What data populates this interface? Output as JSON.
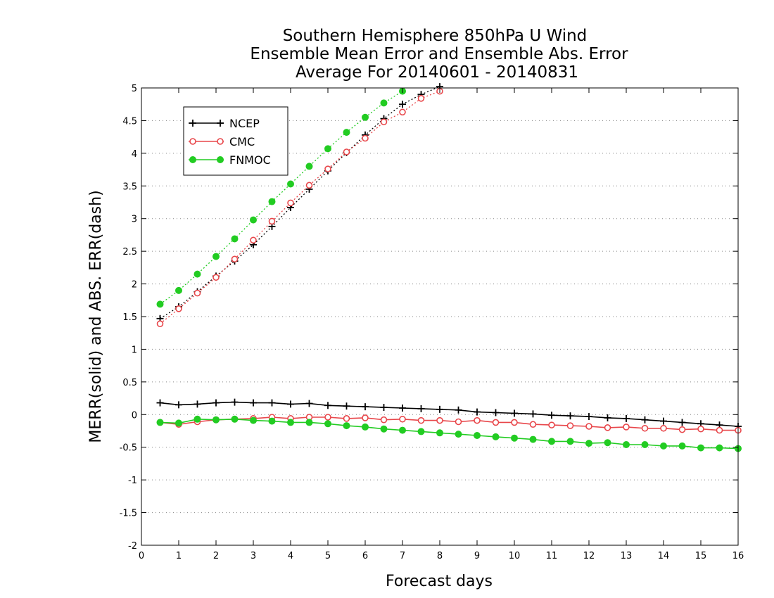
{
  "chart_data": {
    "type": "line",
    "title": [
      "Southern Hemisphere 850hPa U Wind",
      "Ensemble Mean Error and Ensemble Abs. Error",
      "Average For 20140601 - 20140831"
    ],
    "xlabel": "Forecast days",
    "ylabel": "MERR(solid) and ABS. ERR(dash)",
    "xlim": [
      0,
      16
    ],
    "ylim": [
      -2,
      5
    ],
    "xticks": [
      0,
      1,
      2,
      3,
      4,
      5,
      6,
      7,
      8,
      9,
      10,
      11,
      12,
      13,
      14,
      15,
      16
    ],
    "yticks": [
      -2,
      -1.5,
      -1,
      -0.5,
      0,
      0.5,
      1,
      1.5,
      2,
      2.5,
      3,
      3.5,
      4,
      4.5,
      5
    ],
    "ytick_labels": [
      "-2",
      "-1.5",
      "-1",
      "-0.5",
      "0",
      "0.5",
      "1",
      "1.5",
      "2",
      "2.5",
      "3",
      "3.5",
      "4",
      "4.5",
      "5"
    ],
    "grid": "horizontal dotted",
    "legend": {
      "position": "top-left"
    },
    "x": [
      0.5,
      1,
      1.5,
      2,
      2.5,
      3,
      3.5,
      4,
      4.5,
      5,
      5.5,
      6,
      6.5,
      7,
      7.5,
      8,
      8.5,
      9,
      9.5,
      10,
      10.5,
      11,
      11.5,
      12,
      12.5,
      13,
      13.5,
      14,
      14.5,
      15,
      15.5,
      16
    ],
    "series": [
      {
        "name": "NCEP",
        "color": "#000000",
        "marker": "plus",
        "merr": [
          0.18,
          0.15,
          0.16,
          0.18,
          0.19,
          0.18,
          0.18,
          0.16,
          0.17,
          0.14,
          0.13,
          0.12,
          0.11,
          0.1,
          0.09,
          0.08,
          0.07,
          0.04,
          0.03,
          0.02,
          0.01,
          -0.01,
          -0.02,
          -0.03,
          -0.05,
          -0.06,
          -0.08,
          -0.1,
          -0.12,
          -0.14,
          -0.16,
          -0.18
        ],
        "abs_err": [
          1.47,
          1.65,
          1.88,
          2.12,
          2.35,
          2.6,
          2.88,
          3.17,
          3.45,
          3.73,
          4.01,
          4.28,
          4.53,
          4.75,
          4.9,
          5.02,
          null,
          null,
          null,
          null,
          null,
          null,
          null,
          null,
          null,
          null,
          null,
          null,
          null,
          null,
          null,
          null
        ]
      },
      {
        "name": "CMC",
        "color": "#e8464a",
        "marker": "open-circle",
        "merr": [
          -0.12,
          -0.15,
          -0.11,
          -0.08,
          -0.07,
          -0.06,
          -0.04,
          -0.06,
          -0.04,
          -0.04,
          -0.06,
          -0.05,
          -0.08,
          -0.07,
          -0.09,
          -0.09,
          -0.11,
          -0.09,
          -0.12,
          -0.12,
          -0.15,
          -0.16,
          -0.17,
          -0.18,
          -0.2,
          -0.19,
          -0.21,
          -0.21,
          -0.23,
          -0.22,
          -0.24,
          -0.24
        ],
        "abs_err": [
          1.39,
          1.62,
          1.86,
          2.1,
          2.38,
          2.67,
          2.96,
          3.24,
          3.51,
          3.76,
          4.02,
          4.23,
          4.48,
          4.63,
          4.84,
          4.95,
          null,
          null,
          null,
          null,
          null,
          null,
          null,
          null,
          null,
          null,
          null,
          null,
          null,
          null,
          null,
          null
        ]
      },
      {
        "name": "FNMOC",
        "color": "#22cc22",
        "marker": "filled-circle",
        "merr": [
          -0.12,
          -0.13,
          -0.07,
          -0.08,
          -0.07,
          -0.09,
          -0.1,
          -0.12,
          -0.12,
          -0.14,
          -0.17,
          -0.19,
          -0.22,
          -0.24,
          -0.26,
          -0.28,
          -0.3,
          -0.32,
          -0.34,
          -0.36,
          -0.38,
          -0.41,
          -0.41,
          -0.44,
          -0.43,
          -0.46,
          -0.46,
          -0.48,
          -0.48,
          -0.51,
          -0.51,
          -0.52
        ],
        "abs_err": [
          1.69,
          1.9,
          2.15,
          2.42,
          2.69,
          2.98,
          3.26,
          3.53,
          3.8,
          4.07,
          4.32,
          4.55,
          4.77,
          4.95,
          null,
          null,
          null,
          null,
          null,
          null,
          null,
          null,
          null,
          null,
          null,
          null,
          null,
          null,
          null,
          null,
          null,
          null
        ]
      }
    ]
  }
}
